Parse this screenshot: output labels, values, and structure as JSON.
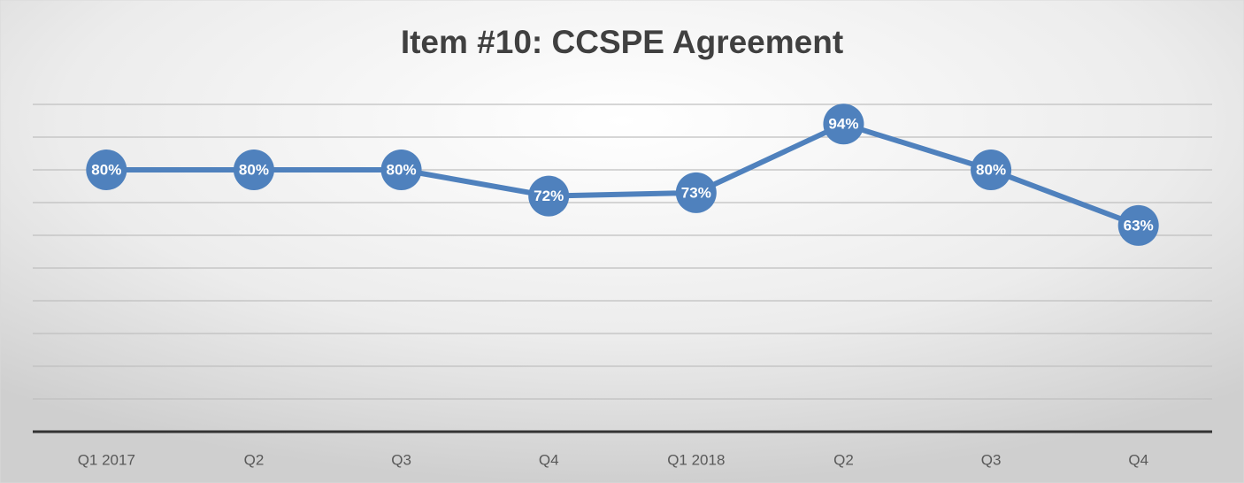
{
  "chart_data": {
    "type": "line",
    "title": "Item #10: CCSPE Agreement",
    "categories": [
      "Q1 2017",
      "Q2",
      "Q3",
      "Q4",
      "Q1 2018",
      "Q2",
      "Q3",
      "Q4"
    ],
    "values": [
      80,
      80,
      80,
      72,
      73,
      94,
      80,
      63
    ],
    "value_labels": [
      "80%",
      "80%",
      "80%",
      "72%",
      "73%",
      "94%",
      "80%",
      "63%"
    ],
    "color": "#4f81bd",
    "ylim": [
      0,
      100
    ],
    "yticks": [
      0,
      10,
      20,
      30,
      40,
      50,
      60,
      70,
      80,
      90,
      100
    ],
    "grid": true
  }
}
